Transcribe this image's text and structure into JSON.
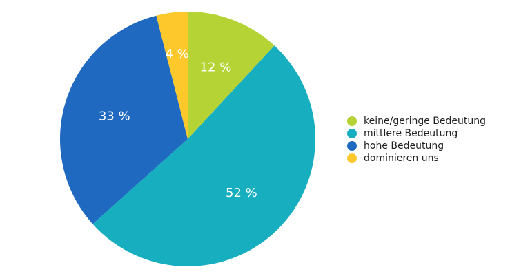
{
  "chart_data": {
    "type": "pie",
    "categories": [
      "keine/geringe Bedeutung",
      "mittlere Bedeutung",
      "hohe Bedeutung",
      "dominieren uns"
    ],
    "values": [
      12,
      52,
      33,
      4
    ],
    "value_labels": [
      "12 %",
      "52 %",
      "33 %",
      "4 %"
    ],
    "colors": [
      "#b5d334",
      "#17afc0",
      "#1f69c0",
      "#fcc82b"
    ],
    "legend": "right"
  }
}
